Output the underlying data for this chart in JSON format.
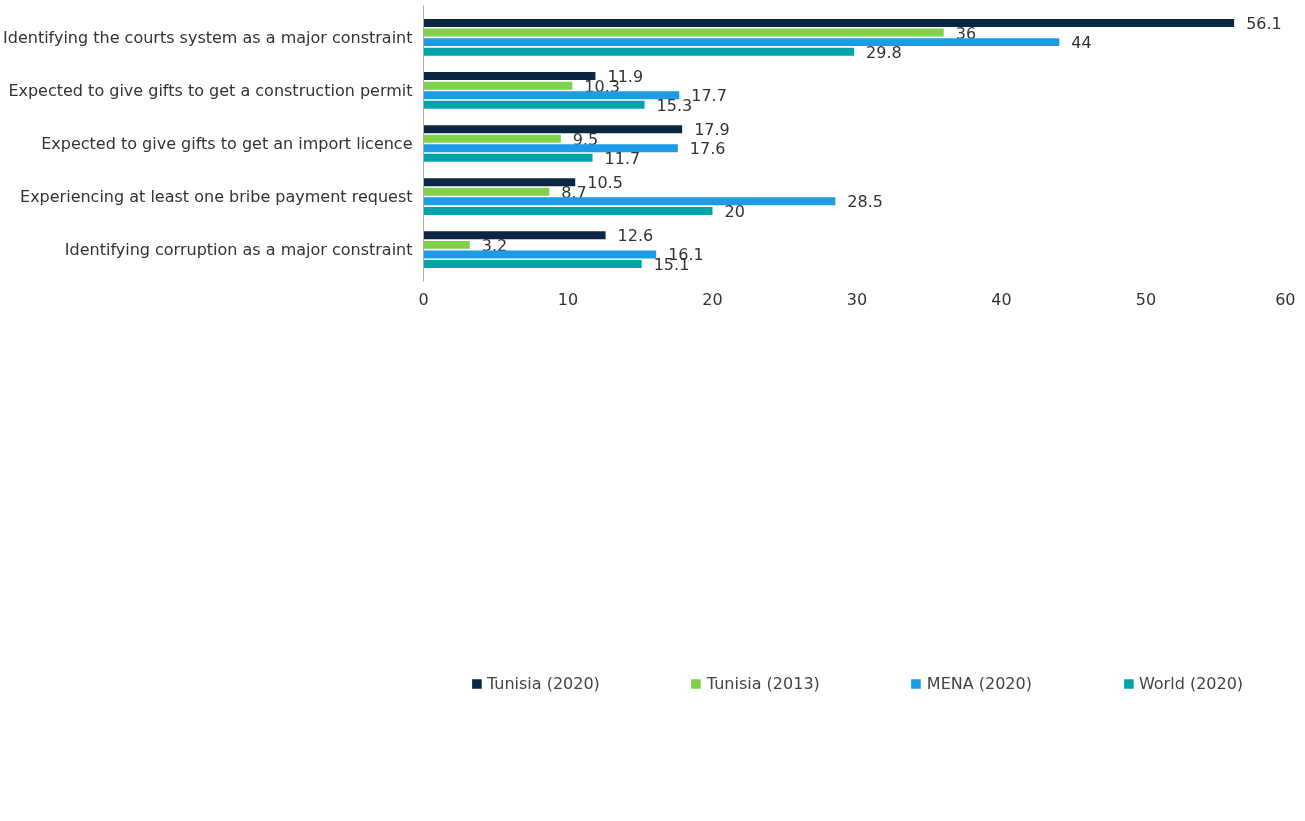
{
  "chart_data": {
    "type": "bar",
    "orientation": "horizontal",
    "categories": [
      "Identifying the courts system as a major constraint",
      "Expected to give gifts to get a construction permit",
      "Expected to give gifts to get an import licence",
      "Experiencing at least one bribe payment request",
      "Identifying corruption as a major constraint"
    ],
    "series": [
      {
        "name": "Tunisia (2020)",
        "color": "#0b2642",
        "values": [
          56.1,
          11.9,
          17.9,
          10.5,
          12.6
        ]
      },
      {
        "name": "Tunisia (2013)",
        "color": "#7fd14b",
        "values": [
          36,
          10.3,
          9.5,
          8.7,
          3.2
        ]
      },
      {
        "name": "MENA (2020)",
        "color": "#1e9be5",
        "values": [
          44,
          17.7,
          17.6,
          28.5,
          16.1
        ]
      },
      {
        "name": "World (2020)",
        "color": "#00a4a8",
        "values": [
          29.8,
          15.3,
          11.7,
          20,
          15.1
        ]
      }
    ],
    "xlim": [
      0,
      60
    ],
    "xticks": [
      0,
      10,
      20,
      30,
      40,
      50,
      60
    ],
    "data_labels": true,
    "grid": false,
    "legend": "bottom"
  }
}
